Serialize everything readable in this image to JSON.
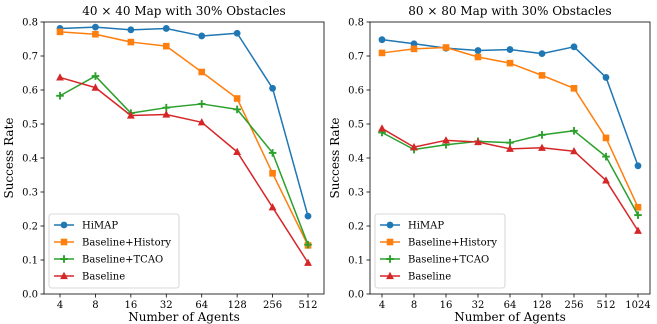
{
  "colors": {
    "series": [
      "#1f77b4",
      "#ff7f0e",
      "#2ca02c",
      "#d62728"
    ],
    "axis": "#000000",
    "legend_border": "#cccccc"
  },
  "chart_data": [
    {
      "type": "line",
      "title": "40 × 40 Map with 30% Obstacles",
      "xlabel": "Number of Agents",
      "ylabel": "Success Rate",
      "categories": [
        "4",
        "8",
        "16",
        "32",
        "64",
        "128",
        "256",
        "512"
      ],
      "ylim": [
        0,
        0.8
      ],
      "yticks": [
        "0.0",
        "0.1",
        "0.2",
        "0.3",
        "0.4",
        "0.5",
        "0.6",
        "0.7",
        "0.8"
      ],
      "legend_position": "lower-left",
      "grid": false,
      "series": [
        {
          "name": "HiMAP",
          "marker": "circle",
          "values": [
            0.781,
            0.785,
            0.777,
            0.781,
            0.759,
            0.767,
            0.605,
            0.229
          ]
        },
        {
          "name": "Baseline+History",
          "marker": "square",
          "values": [
            0.771,
            0.764,
            0.741,
            0.729,
            0.653,
            0.575,
            0.355,
            0.143
          ]
        },
        {
          "name": "Baseline+TCAO",
          "marker": "plus",
          "values": [
            0.583,
            0.641,
            0.532,
            0.548,
            0.559,
            0.543,
            0.415,
            0.145
          ]
        },
        {
          "name": "Baseline",
          "marker": "triangle",
          "values": [
            0.637,
            0.607,
            0.525,
            0.528,
            0.505,
            0.418,
            0.255,
            0.092
          ]
        }
      ]
    },
    {
      "type": "line",
      "title": "80 × 80 Map with 30% Obstacles",
      "xlabel": "Number of Agents",
      "ylabel": "Success Rate",
      "categories": [
        "4",
        "8",
        "16",
        "32",
        "64",
        "128",
        "256",
        "512",
        "1024"
      ],
      "ylim": [
        0,
        0.8
      ],
      "yticks": [
        "0.0",
        "0.1",
        "0.2",
        "0.3",
        "0.4",
        "0.5",
        "0.6",
        "0.7",
        "0.8"
      ],
      "legend_position": "lower-left",
      "grid": false,
      "series": [
        {
          "name": "HiMAP",
          "marker": "circle",
          "values": [
            0.748,
            0.736,
            0.723,
            0.716,
            0.719,
            0.707,
            0.727,
            0.637,
            0.377
          ]
        },
        {
          "name": "Baseline+History",
          "marker": "square",
          "values": [
            0.709,
            0.721,
            0.725,
            0.697,
            0.679,
            0.643,
            0.605,
            0.459,
            0.255
          ]
        },
        {
          "name": "Baseline+TCAO",
          "marker": "plus",
          "values": [
            0.475,
            0.425,
            0.439,
            0.449,
            0.445,
            0.468,
            0.48,
            0.404,
            0.232
          ]
        },
        {
          "name": "Baseline",
          "marker": "triangle",
          "values": [
            0.487,
            0.432,
            0.452,
            0.447,
            0.427,
            0.43,
            0.42,
            0.334,
            0.186
          ]
        }
      ]
    }
  ]
}
